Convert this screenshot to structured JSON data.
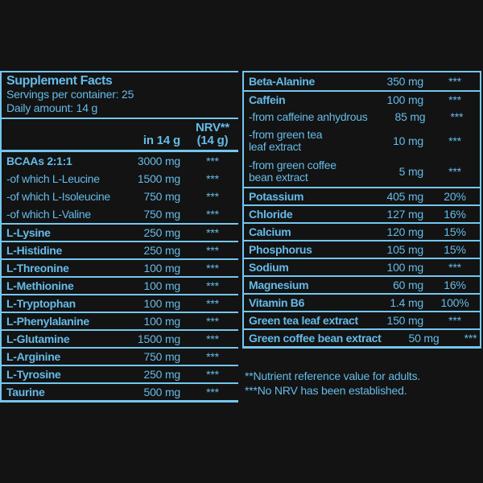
{
  "theme": {
    "accent": "#65bbe8",
    "rule": "#74c6ee",
    "background": "#131313"
  },
  "header": {
    "title": "Supplement Facts",
    "servings": "Servings per container: 25",
    "daily_amount": "Daily amount: 14 g"
  },
  "column_headers": {
    "amount": "in 14 g",
    "nrv_line1": "NRV**",
    "nrv_line2": "(14 g)"
  },
  "left_table": {
    "rows": [
      {
        "name": "BCAAs 2:1:1",
        "amount": "3000 mg",
        "nrv": "***"
      },
      {
        "name": "-of which L-Leucine",
        "amount": "1500 mg",
        "nrv": "***"
      },
      {
        "name": "-of which L-Isoleucine",
        "amount": "750 mg",
        "nrv": "***"
      },
      {
        "name": "-of which L-Valine",
        "amount": "750 mg",
        "nrv": "***"
      },
      {
        "name": "L-Lysine",
        "amount": "250 mg",
        "nrv": "***"
      },
      {
        "name": "L-Histidine",
        "amount": "250 mg",
        "nrv": "***"
      },
      {
        "name": "L-Threonine",
        "amount": "100 mg",
        "nrv": "***"
      },
      {
        "name": "L-Methionine",
        "amount": "100 mg",
        "nrv": "***"
      },
      {
        "name": "L-Tryptophan",
        "amount": "100 mg",
        "nrv": "***"
      },
      {
        "name": "L-Phenylalanine",
        "amount": "100 mg",
        "nrv": "***"
      },
      {
        "name": "L-Glutamine",
        "amount": "1500 mg",
        "nrv": "***"
      },
      {
        "name": "L-Arginine",
        "amount": "750 mg",
        "nrv": "***"
      },
      {
        "name": "L-Tyrosine",
        "amount": "250 mg",
        "nrv": "***"
      },
      {
        "name": "Taurine",
        "amount": "500 mg",
        "nrv": "***"
      }
    ]
  },
  "right_table": {
    "rows": [
      {
        "name": "Beta-Alanine",
        "amount": "350 mg",
        "nrv": "***"
      },
      {
        "name": "Caffein",
        "amount": "100 mg",
        "nrv": "***"
      },
      {
        "name": "-from caffeine anhydrous",
        "amount": "85 mg",
        "nrv": "***"
      },
      {
        "name": "-from green tea",
        "name2": "leaf extract",
        "amount": "10 mg",
        "nrv": "***"
      },
      {
        "name": "-from green coffee",
        "name2": "bean extract",
        "amount": "5 mg",
        "nrv": "***"
      },
      {
        "name": "Potassium",
        "amount": "405 mg",
        "nrv": "20%"
      },
      {
        "name": "Chloride",
        "amount": "127 mg",
        "nrv": "16%"
      },
      {
        "name": "Calcium",
        "amount": "120 mg",
        "nrv": "15%"
      },
      {
        "name": "Phosphorus",
        "amount": "105 mg",
        "nrv": "15%"
      },
      {
        "name": "Sodium",
        "amount": "100 mg",
        "nrv": "***"
      },
      {
        "name": "Magnesium",
        "amount": "60 mg",
        "nrv": "16%"
      },
      {
        "name": "Vitamin B6",
        "amount": "1.4 mg",
        "nrv": "100%"
      },
      {
        "name": "Green tea leaf extract",
        "amount": "150 mg",
        "nrv": "***"
      },
      {
        "name": "Green coffee bean extract",
        "amount": "50 mg",
        "nrv": "***"
      }
    ]
  },
  "footnotes": {
    "line1": "**Nutrient reference value for adults.",
    "line2": "***No NRV has been established."
  }
}
